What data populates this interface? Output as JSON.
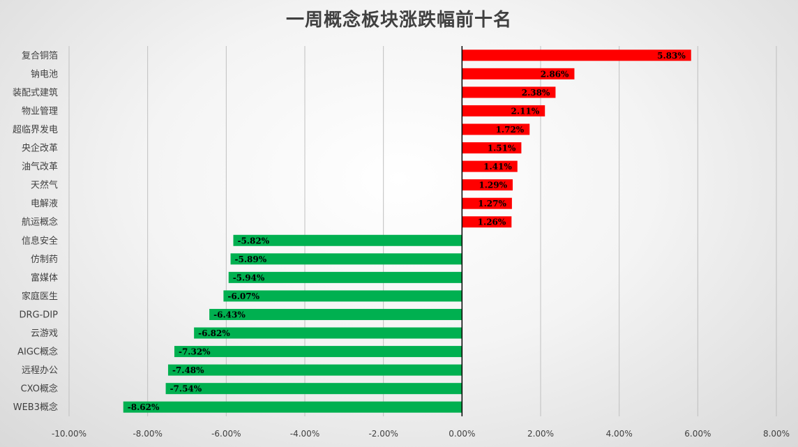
{
  "chart_data": {
    "type": "bar",
    "orientation": "horizontal",
    "title": "一周概念板块涨跌幅前十名",
    "xlabel": "",
    "ylabel": "",
    "xlim": [
      -10,
      8
    ],
    "x_ticks": [
      "-10.00%",
      "-8.00%",
      "-6.00%",
      "-4.00%",
      "-2.00%",
      "0.00%",
      "2.00%",
      "4.00%",
      "6.00%",
      "8.00%"
    ],
    "grid": true,
    "positive_color": "#ff0000",
    "negative_color": "#00b050",
    "categories": [
      "复合铜箔",
      "钠电池",
      "装配式建筑",
      "物业管理",
      "超临界发电",
      "央企改革",
      "油气改革",
      "天然气",
      "电解液",
      "航运概念",
      "信息安全",
      "仿制药",
      "富媒体",
      "家庭医生",
      "DRG-DIP",
      "云游戏",
      "AIGC概念",
      "远程办公",
      "CXO概念",
      "WEB3概念"
    ],
    "values": [
      5.83,
      2.86,
      2.38,
      2.11,
      1.72,
      1.51,
      1.41,
      1.29,
      1.27,
      1.26,
      -5.82,
      -5.89,
      -5.94,
      -6.07,
      -6.43,
      -6.82,
      -7.32,
      -7.48,
      -7.54,
      -8.62
    ],
    "labels": [
      "5.83%",
      "2.86%",
      "2.38%",
      "2.11%",
      "1.72%",
      "1.51%",
      "1.41%",
      "1.29%",
      "1.27%",
      "1.26%",
      "-5.82%",
      "-5.89%",
      "-5.94%",
      "-6.07%",
      "-6.43%",
      "-6.82%",
      "-7.32%",
      "-7.48%",
      "-7.54%",
      "-8.62%"
    ]
  }
}
